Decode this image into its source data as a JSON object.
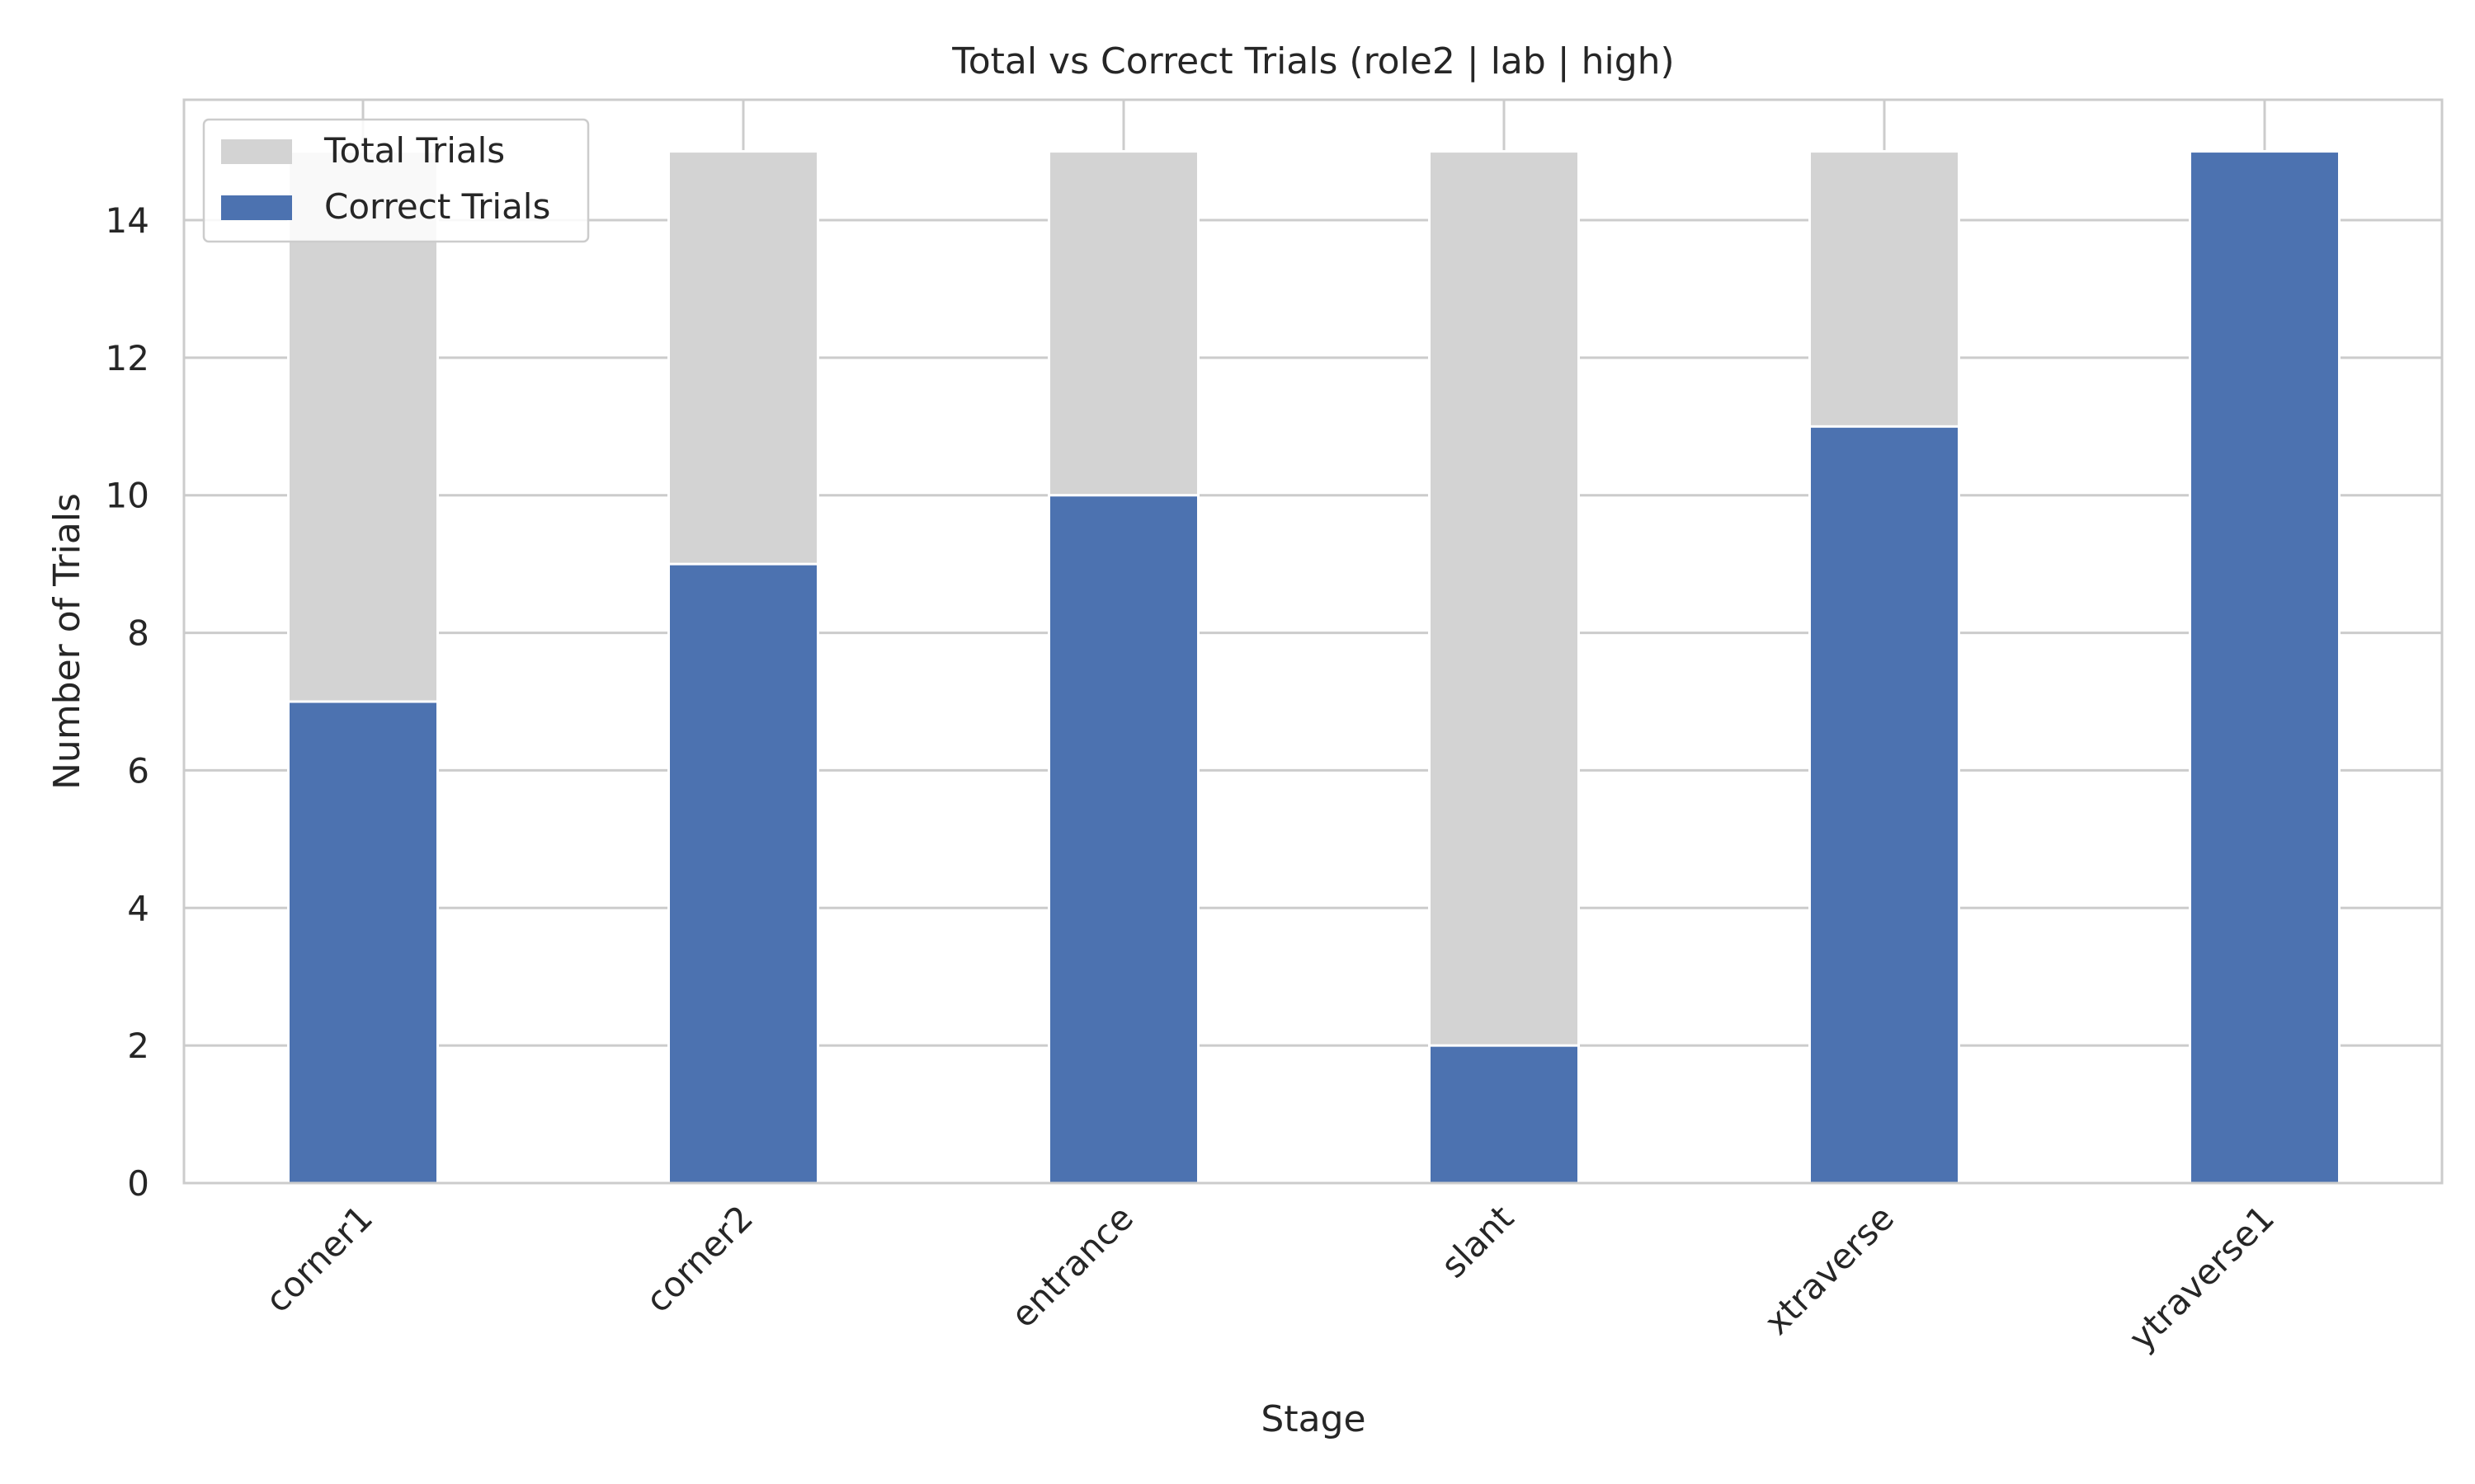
{
  "chart_data": {
    "type": "bar",
    "title": "Total vs Correct Trials (role2 | lab | high)",
    "xlabel": "Stage",
    "ylabel": "Number of Trials",
    "categories": [
      "corner1",
      "corner2",
      "entrance",
      "slant",
      "xtraverse",
      "ytraverse1"
    ],
    "series": [
      {
        "name": "Total Trials",
        "values": [
          15,
          15,
          15,
          15,
          15,
          15
        ]
      },
      {
        "name": "Correct Trials",
        "values": [
          7,
          9,
          10,
          2,
          11,
          15
        ]
      }
    ],
    "ylim": [
      0,
      15.75
    ],
    "yticks": [
      0,
      2,
      4,
      6,
      8,
      10,
      12,
      14
    ],
    "grid": true,
    "legend_position": "top-left",
    "colors": {
      "total": "#d3d3d3",
      "correct": "#4c72b0",
      "grid": "#cccccc",
      "axes": "#cccccc"
    }
  }
}
